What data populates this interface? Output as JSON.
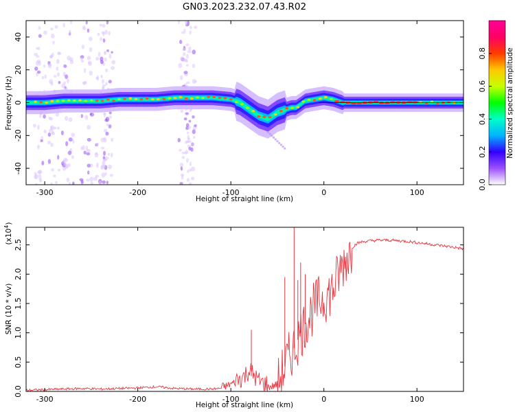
{
  "title": "GN03.2023.232.07.43.R02",
  "chart_data": [
    {
      "type": "heatmap",
      "title": "GN03.2023.232.07.43.R02",
      "xlabel": "Height of straight line (km)",
      "ylabel": "Frequency (Hz)",
      "xlim": [
        -320,
        150
      ],
      "ylim": [
        -50,
        50
      ],
      "x_ticks": [
        -300,
        -200,
        -100,
        0,
        100
      ],
      "y_ticks": [
        -40,
        -20,
        0,
        20,
        40
      ],
      "ridge": {
        "x": [
          -320,
          -300,
          -280,
          -260,
          -240,
          -220,
          -200,
          -180,
          -160,
          -140,
          -120,
          -100,
          -90,
          -80,
          -75,
          -70,
          -65,
          -60,
          -55,
          -50,
          -45,
          -40,
          -35,
          -30,
          -20,
          -10,
          0,
          10,
          20,
          40,
          60,
          80,
          100,
          120,
          150
        ],
        "y": [
          0,
          0,
          1,
          1,
          1,
          2,
          2,
          2,
          3,
          3,
          3,
          2,
          0,
          -4,
          -6,
          -8,
          -9,
          -10,
          -8,
          -6,
          -5,
          -4,
          -3,
          -3,
          1,
          2,
          3,
          2,
          0,
          0,
          0,
          0,
          0,
          0,
          0
        ]
      },
      "colorbar": {
        "label": "Normalized spectral amplitude",
        "range": [
          0.0,
          1.0
        ],
        "ticks": [
          "0.0",
          "0.2",
          "0.4",
          "0.6",
          "0.8"
        ],
        "colors": [
          "#ffffff",
          "#9c50ff",
          "#3200ff",
          "#00b4ff",
          "#00ffc8",
          "#00ff00",
          "#c8ff00",
          "#ffc800",
          "#ff3c00",
          "#ff0064",
          "#ff0096"
        ]
      }
    },
    {
      "type": "line",
      "xlabel": "Height of straight line (km)",
      "ylabel": "SNR (10 * v/v)",
      "multiplier": "(x10",
      "multiplier_exp": "4",
      "multiplier_close": ")",
      "xlim": [
        -320,
        150
      ],
      "ylim": [
        0,
        2.8
      ],
      "x_ticks": [
        -300,
        -200,
        -100,
        0,
        100
      ],
      "y_ticks": [
        "0.0",
        "0.5",
        "1.0",
        "1.5",
        "2.0",
        "2.5"
      ],
      "color": "#e8323c",
      "series": [
        {
          "x": [
            -320,
            -300,
            -280,
            -260,
            -240,
            -220,
            -200,
            -180,
            -160,
            -140,
            -120,
            -105,
            -100,
            -90,
            -85,
            -80,
            -75,
            -70,
            -65,
            -60,
            -55,
            -50,
            -45,
            -40,
            -35,
            -30,
            -25,
            -20,
            -15,
            -10,
            -5,
            0,
            5,
            10,
            15,
            20,
            25,
            30,
            35,
            40,
            50,
            60,
            70,
            80,
            90,
            100,
            110,
            120,
            130,
            140,
            150
          ],
          "y": [
            0.02,
            0.03,
            0.04,
            0.05,
            0.04,
            0.05,
            0.06,
            0.08,
            0.05,
            0.04,
            0.04,
            0.06,
            0.1,
            0.15,
            0.2,
            0.3,
            0.2,
            0.1,
            0.07,
            0.05,
            0.06,
            0.1,
            0.3,
            0.5,
            0.65,
            0.8,
            1.0,
            1.15,
            1.3,
            1.45,
            1.55,
            1.6,
            1.65,
            1.75,
            1.95,
            2.15,
            2.3,
            2.45,
            2.52,
            2.55,
            2.57,
            2.58,
            2.58,
            2.57,
            2.56,
            2.54,
            2.52,
            2.5,
            2.48,
            2.46,
            2.43
          ]
        }
      ],
      "spikes": [
        {
          "x": -32,
          "y": 2.8
        },
        {
          "x": -78,
          "y": 1.05
        },
        {
          "x": -42,
          "y": 1.95
        },
        {
          "x": -28,
          "y": 1.9
        },
        {
          "x": -25,
          "y": 2.2
        },
        {
          "x": -20,
          "y": 2.0
        }
      ]
    }
  ]
}
